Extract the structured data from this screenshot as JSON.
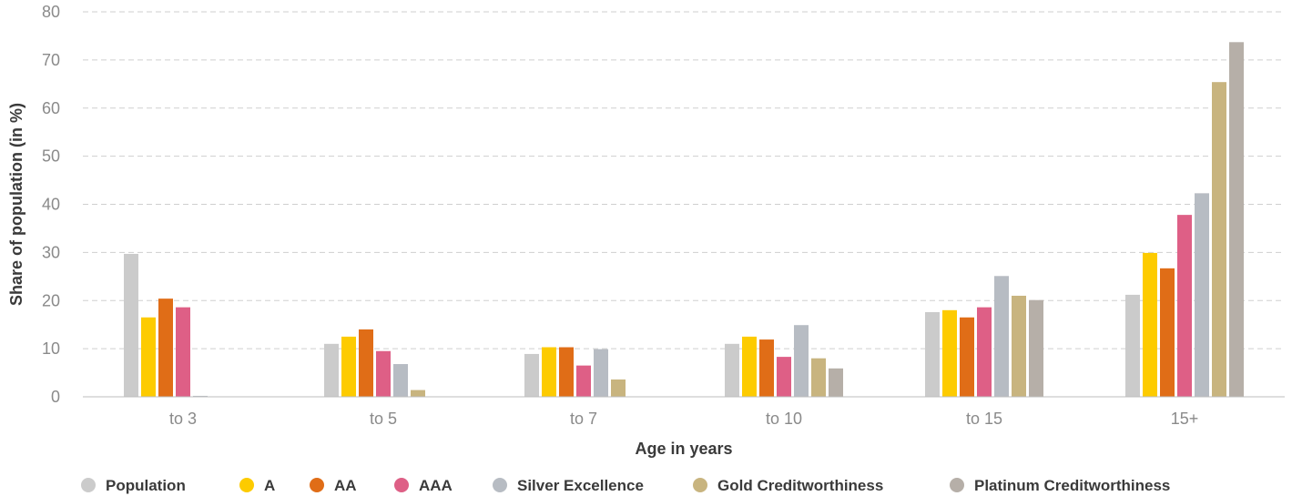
{
  "chart_data": {
    "type": "bar",
    "title": "",
    "xlabel": "Age in years",
    "ylabel": "Share of population (in %)",
    "ylim": [
      0,
      80
    ],
    "yticks": [
      0,
      10,
      20,
      30,
      40,
      50,
      60,
      70,
      80
    ],
    "grid": true,
    "legend_position": "bottom",
    "categories": [
      "to 3",
      "to 5",
      "to 7",
      "to 10",
      "to 15",
      "15+"
    ],
    "series": [
      {
        "name": "Population",
        "color": "#cbcbcb",
        "values": [
          29.7,
          11.0,
          8.9,
          11.0,
          17.6,
          21.2
        ]
      },
      {
        "name": "A",
        "color": "#fdcb00",
        "values": [
          16.5,
          12.5,
          10.3,
          12.5,
          18.0,
          29.9
        ]
      },
      {
        "name": "AA",
        "color": "#e06d17",
        "values": [
          20.4,
          14.0,
          10.3,
          11.9,
          16.5,
          26.7
        ]
      },
      {
        "name": "AAA",
        "color": "#de5f86",
        "values": [
          18.6,
          9.5,
          6.5,
          8.3,
          18.6,
          37.8
        ]
      },
      {
        "name": "Silver Excellence",
        "color": "#b7bcc3",
        "values": [
          0.2,
          6.8,
          9.9,
          14.9,
          25.1,
          42.3
        ]
      },
      {
        "name": "Gold Creditworthiness",
        "color": "#c8b47f",
        "values": [
          0.0,
          1.4,
          3.6,
          8.0,
          21.0,
          65.4
        ]
      },
      {
        "name": "Platinum Creditworthiness",
        "color": "#b6afa8",
        "values": [
          0.0,
          0.0,
          0.0,
          5.9,
          20.1,
          73.7
        ]
      }
    ]
  }
}
